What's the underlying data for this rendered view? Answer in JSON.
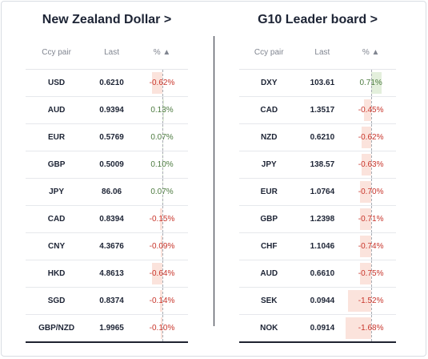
{
  "left_panel": {
    "title": "New Zealand Dollar >",
    "headers": {
      "pair": "Ccy pair",
      "last": "Last",
      "pct": "% ▲"
    },
    "rows": [
      {
        "pair": "USD",
        "last": "0.6210",
        "pct": "-0.62%",
        "change": -0.62
      },
      {
        "pair": "AUD",
        "last": "0.9394",
        "pct": "0.13%",
        "change": 0.13
      },
      {
        "pair": "EUR",
        "last": "0.5769",
        "pct": "0.07%",
        "change": 0.07
      },
      {
        "pair": "GBP",
        "last": "0.5009",
        "pct": "0.10%",
        "change": 0.1
      },
      {
        "pair": "JPY",
        "last": "86.06",
        "pct": "0.07%",
        "change": 0.07
      },
      {
        "pair": "CAD",
        "last": "0.8394",
        "pct": "-0.15%",
        "change": -0.15
      },
      {
        "pair": "CNY",
        "last": "4.3676",
        "pct": "-0.09%",
        "change": -0.09
      },
      {
        "pair": "HKD",
        "last": "4.8613",
        "pct": "-0.64%",
        "change": -0.64
      },
      {
        "pair": "SGD",
        "last": "0.8374",
        "pct": "-0.14%",
        "change": -0.14
      },
      {
        "pair": "GBP/NZD",
        "last": "1.9965",
        "pct": "-0.10%",
        "change": -0.1
      }
    ]
  },
  "right_panel": {
    "title": "G10 Leader board >",
    "headers": {
      "pair": "Ccy pair",
      "last": "Last",
      "pct": "% ▲"
    },
    "rows": [
      {
        "pair": "DXY",
        "last": "103.61",
        "pct": "0.71%",
        "change": 0.71
      },
      {
        "pair": "CAD",
        "last": "1.3517",
        "pct": "-0.45%",
        "change": -0.45
      },
      {
        "pair": "NZD",
        "last": "0.6210",
        "pct": "-0.62%",
        "change": -0.62
      },
      {
        "pair": "JPY",
        "last": "138.57",
        "pct": "-0.63%",
        "change": -0.63
      },
      {
        "pair": "EUR",
        "last": "1.0764",
        "pct": "-0.70%",
        "change": -0.7
      },
      {
        "pair": "GBP",
        "last": "1.2398",
        "pct": "-0.71%",
        "change": -0.71
      },
      {
        "pair": "CHF",
        "last": "1.1046",
        "pct": "-0.74%",
        "change": -0.74
      },
      {
        "pair": "AUD",
        "last": "0.6610",
        "pct": "-0.75%",
        "change": -0.75
      },
      {
        "pair": "SEK",
        "last": "0.0944",
        "pct": "-1.52%",
        "change": -1.52
      },
      {
        "pair": "NOK",
        "last": "0.0914",
        "pct": "-1.68%",
        "change": -1.68
      }
    ]
  },
  "colors": {
    "negative_text": "#c8352b",
    "positive_text": "#4c7a3f",
    "negative_bar": "#fbe3dc",
    "positive_bar": "#e3efdc"
  }
}
